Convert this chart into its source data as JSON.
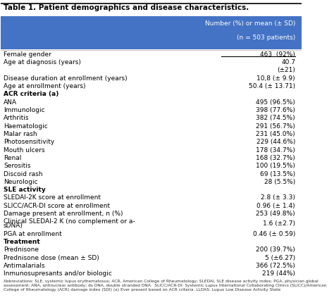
{
  "title": "Table 1. Patient demographics and disease characteristics.",
  "header_col2": "Number (%) or mean (± SD)",
  "header_sub": "(n = 503 patients)",
  "header_bg": "#4472C4",
  "header_text_color": "#FFFFFF",
  "rows": [
    {
      "label": "Female gender",
      "value": "463  (92%)",
      "underline_value": true,
      "bold_label": false,
      "extra_line": false
    },
    {
      "label": "Age at diagnosis (years)",
      "value": "40.7",
      "underline_value": false,
      "bold_label": false,
      "extra_line": false
    },
    {
      "label": "",
      "value": "(±21)",
      "underline_value": false,
      "bold_label": false,
      "extra_line": false
    },
    {
      "label": "Disease duration at enrollment (years)",
      "value": "10,8 (± 9.9)",
      "underline_value": false,
      "bold_label": false,
      "extra_line": false
    },
    {
      "label": "Age at enrollment (years)",
      "value": "50.4 (± 13.71)",
      "underline_value": false,
      "bold_label": false,
      "extra_line": false
    },
    {
      "label": "ACR criteria (a)",
      "value": "",
      "underline_value": false,
      "bold_label": true,
      "extra_line": false
    },
    {
      "label": "ANA",
      "value": "495 (96.5%)",
      "underline_value": false,
      "bold_label": false,
      "extra_line": false
    },
    {
      "label": "Immunologic",
      "value": "398 (77.6%)",
      "underline_value": false,
      "bold_label": false,
      "extra_line": false
    },
    {
      "label": "Arthritis",
      "value": "382 (74.5%)",
      "underline_value": false,
      "bold_label": false,
      "extra_line": false
    },
    {
      "label": "Haematologic",
      "value": "291 (56.7%)",
      "underline_value": false,
      "bold_label": false,
      "extra_line": false
    },
    {
      "label": "Malar rash",
      "value": "231 (45.0%)",
      "underline_value": false,
      "bold_label": false,
      "extra_line": false
    },
    {
      "label": "Photosensitivity",
      "value": "229 (44.6%)",
      "underline_value": false,
      "bold_label": false,
      "extra_line": false
    },
    {
      "label": "Mouth ulcers",
      "value": "178 (34.7%)",
      "underline_value": false,
      "bold_label": false,
      "extra_line": false
    },
    {
      "label": "Renal",
      "value": "168 (32.7%)",
      "underline_value": false,
      "bold_label": false,
      "extra_line": false
    },
    {
      "label": "Serositis",
      "value": "100 (19.5%)",
      "underline_value": false,
      "bold_label": false,
      "extra_line": false
    },
    {
      "label": "Discoid rash",
      "value": "69 (13.5%)",
      "underline_value": false,
      "bold_label": false,
      "extra_line": false
    },
    {
      "label": "Neurologic",
      "value": "28 (5.5%)",
      "underline_value": false,
      "bold_label": false,
      "extra_line": false
    },
    {
      "label": "SLE activity",
      "value": "",
      "underline_value": false,
      "bold_label": true,
      "extra_line": false
    },
    {
      "label": "SLEDAI-2K score at enrollment",
      "value": "2.8 (± 3.3)",
      "underline_value": false,
      "bold_label": false,
      "extra_line": false
    },
    {
      "label": "SLICC/ACR-DI score at enrollment",
      "value": "0.96 (± 1.4)",
      "underline_value": false,
      "bold_label": false,
      "extra_line": false
    },
    {
      "label": "Damage present at enrollment, n (%)",
      "value": "253 (49.8%)",
      "underline_value": false,
      "bold_label": false,
      "extra_line": false
    },
    {
      "label": "Clinical SLEDAI-2 K (no complement or a-sDNA)",
      "value": "1.6 (±2.7)",
      "underline_value": false,
      "bold_label": false,
      "extra_line": true
    },
    {
      "label": "PGA at enrollment",
      "value": "0.46 (± 0.59)",
      "underline_value": false,
      "bold_label": false,
      "extra_line": false
    },
    {
      "label": "Treatment",
      "value": "",
      "underline_value": false,
      "bold_label": true,
      "extra_line": false
    },
    {
      "label": "Prednisone",
      "value": "200 (39.7%)",
      "underline_value": false,
      "bold_label": false,
      "extra_line": false
    },
    {
      "label": "Prednisone dose (mean ± SD)",
      "value": "5 (±6.27)",
      "underline_value": false,
      "bold_label": false,
      "extra_line": false
    },
    {
      "label": "Antimalarials",
      "value": "366 (72.5%)",
      "underline_value": false,
      "bold_label": false,
      "extra_line": false
    },
    {
      "label": "Inmunosupresants and/or biologic",
      "value": "219 (44%)",
      "underline_value": false,
      "bold_label": false,
      "extra_line": false
    }
  ],
  "footnote": "Abbreviations: SLE, systemic lupus erythematosus; ACR, American College of Rheumatology; SLEDAI, SLE disease activity index; PGA, physician global assessment; ANA, antinuclear antibody; ds DNA, double stranded DNA.  SLICC/ACR-DI: Systemic Lupus International Collaborating Clinics (SLICC)/American College of Rheumatology (ACR) damage index (SDI) (a) Ever present based on ACR criteria. LLDAS: Lupus Low Disease Activity State",
  "bg_color": "#FFFFFF",
  "text_color": "#000000",
  "font_size": 6.5,
  "title_font_size": 7.5
}
